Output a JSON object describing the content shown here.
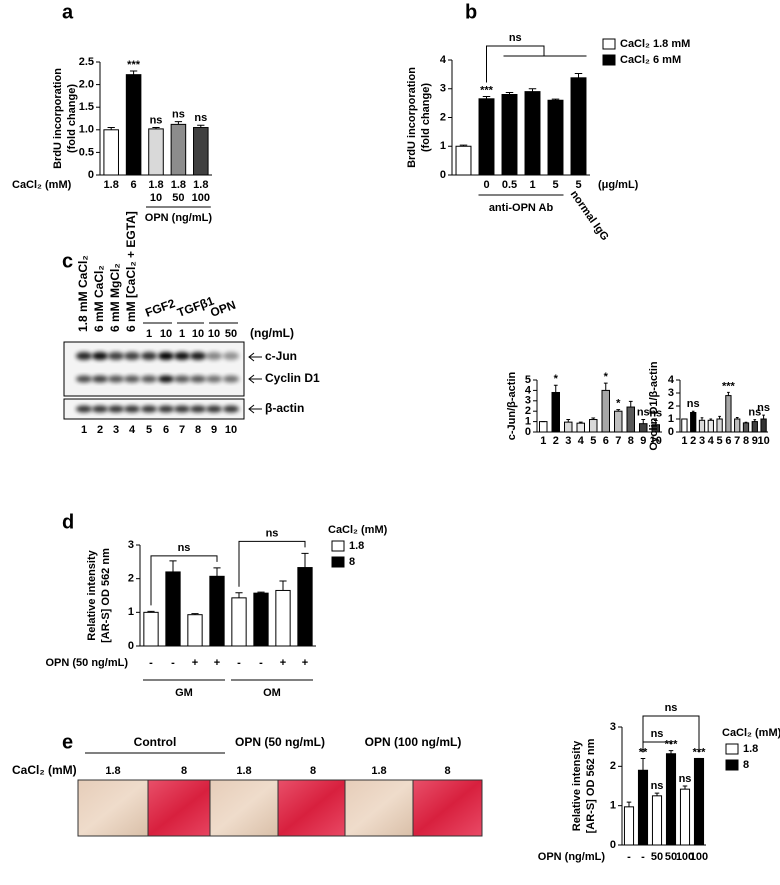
{
  "panel_labels": [
    "a",
    "b",
    "c",
    "d",
    "e"
  ],
  "blot": {
    "lane_conditions": [
      "1.8 mM CaCl₂",
      "6 mM CaCl₂",
      "6 mM MgCl₂",
      "6 mM [CaCl₂ + EGTA]"
    ],
    "treatments": [
      "FGF2",
      "TGFβ1",
      "OPN"
    ],
    "doses": [
      "1",
      "10",
      "1",
      "10",
      "10",
      "50"
    ],
    "dose_unit": "(ng/mL)",
    "bands": [
      "c-Jun",
      "Cyclin D1",
      "β-actin"
    ],
    "lanes": [
      "1",
      "2",
      "3",
      "4",
      "5",
      "6",
      "7",
      "8",
      "9",
      "10"
    ]
  },
  "staining": {
    "groups": [
      "Control",
      "OPN (50 ng/mL)",
      "OPN (100 ng/mL)"
    ],
    "row_label": "CaCl₂ (mM)",
    "levels": [
      "1.8",
      "8",
      "1.8",
      "8",
      "1.8",
      "8"
    ]
  },
  "chart_data": [
    {
      "type": "bar",
      "y_label": [
        "BrdU incorporation",
        "(fold change)"
      ],
      "category_label": "CaCl₂ (mM)",
      "categories": [
        "1.8",
        "6",
        "1.8",
        "1.8",
        "1.8"
      ],
      "opn_doses": [
        null,
        null,
        "10",
        "50",
        "100"
      ],
      "opn_label": "OPN (ng/mL)",
      "values": [
        1.0,
        2.22,
        1.02,
        1.12,
        1.05
      ],
      "errors": [
        0.05,
        0.08,
        0.03,
        0.06,
        0.05
      ],
      "colors": [
        "#ffffff",
        "#000000",
        "#d9d9d9",
        "#8c8c8c",
        "#404040"
      ],
      "annotations": [
        null,
        "***",
        "ns",
        "ns",
        "ns"
      ],
      "ylim": [
        0,
        2.5
      ],
      "yticks": [
        0,
        0.5,
        {
          "value": 1,
          "label": "1.0"
        },
        1.5,
        {
          "value": 2,
          "label": "2.0"
        },
        2.5
      ]
    },
    {
      "type": "bar",
      "y_label": [
        "BrdU incorporation",
        "(fold change)"
      ],
      "categories": [
        null,
        "0",
        "0.5",
        "1",
        "5",
        "5"
      ],
      "x_unit": "(μg/mL)",
      "groups": [
        "anti-OPN Ab",
        "normal IgG"
      ],
      "series": [
        {
          "name": "CaCl₂ 1.8 mM",
          "color": "#ffffff",
          "values": [
            1.0,
            null,
            null,
            null,
            null,
            null
          ],
          "errors": [
            0.04,
            null,
            null,
            null,
            null,
            null
          ]
        },
        {
          "name": "CaCl₂ 6 mM",
          "color": "#000000",
          "values": [
            null,
            2.65,
            2.8,
            2.9,
            2.6,
            3.38
          ],
          "errors": [
            null,
            0.08,
            0.07,
            0.1,
            0.04,
            0.15
          ]
        }
      ],
      "annotations": [
        null,
        "***",
        null,
        null,
        null,
        null
      ],
      "brackets": [
        "ns"
      ],
      "ylim": [
        0,
        4
      ],
      "yticks": [
        0,
        1,
        2,
        3,
        4
      ]
    },
    {
      "type": "bar",
      "y_label": [
        "c-Jun/β-actin"
      ],
      "categories": [
        "1",
        "2",
        "3",
        "4",
        "5",
        "6",
        "7",
        "8",
        "9",
        "10"
      ],
      "values": [
        1.0,
        3.8,
        0.95,
        0.85,
        1.2,
        4.0,
        2.0,
        2.4,
        0.8,
        0.7
      ],
      "errors": [
        0,
        0.7,
        0.25,
        0.1,
        0.15,
        0.7,
        0.15,
        0.55,
        0.4,
        0.4
      ],
      "colors": [
        "#ffffff",
        "#000000",
        "#d9d9d9",
        "#ececec",
        "#d9d9d9",
        "#a6a6a6",
        "#bfbfbf",
        "#595959",
        "#404040",
        "#333333"
      ],
      "annotations": [
        null,
        "*",
        null,
        null,
        null,
        "*",
        "*",
        null,
        "ns",
        "ns"
      ],
      "ylim": [
        0,
        5
      ],
      "yticks": [
        0,
        1,
        2,
        3,
        4,
        5
      ]
    },
    {
      "type": "bar",
      "y_label": [
        "Cyclin D1/β-actin"
      ],
      "categories": [
        "1",
        "2",
        "3",
        "4",
        "5",
        "6",
        "7",
        "8",
        "9",
        "10"
      ],
      "values": [
        1.0,
        1.5,
        0.9,
        0.9,
        1.0,
        2.8,
        1.0,
        0.7,
        0.8,
        1.0
      ],
      "errors": [
        0,
        0.1,
        0.2,
        0.1,
        0.2,
        0.25,
        0.12,
        0.05,
        0.15,
        0.3
      ],
      "colors": [
        "#ffffff",
        "#000000",
        "#d9d9d9",
        "#ececec",
        "#d9d9d9",
        "#a6a6a6",
        "#bfbfbf",
        "#595959",
        "#404040",
        "#333333"
      ],
      "annotations": [
        null,
        "ns",
        null,
        null,
        null,
        "***",
        null,
        null,
        "ns",
        "ns"
      ],
      "ylim": [
        0,
        4
      ],
      "yticks": [
        0,
        1,
        2,
        3,
        4
      ]
    },
    {
      "type": "bar",
      "y_label": [
        "Relative intensity",
        "[AR-S] OD 562 nm"
      ],
      "categories": [
        "-",
        "-",
        "+",
        "+",
        "-",
        "-",
        "+",
        "+"
      ],
      "x_label": "OPN (50 ng/mL)",
      "groups": [
        "GM",
        "OM"
      ],
      "legend_title": "CaCl₂ (mM)",
      "series": [
        {
          "name": "1.8",
          "color": "#ffffff",
          "values": [
            1.0,
            null,
            0.93,
            null,
            1.43,
            null,
            1.65,
            null
          ],
          "errors": [
            0.03,
            null,
            0.03,
            null,
            0.15,
            null,
            0.28,
            null
          ]
        },
        {
          "name": "8",
          "color": "#000000",
          "values": [
            null,
            2.2,
            null,
            2.07,
            null,
            1.57,
            null,
            2.33
          ],
          "errors": [
            null,
            0.33,
            null,
            0.25,
            null,
            0.03,
            null,
            0.42
          ]
        }
      ],
      "brackets": [
        "ns",
        "ns"
      ],
      "ylim": [
        0,
        3
      ],
      "yticks": [
        0,
        1,
        2,
        3
      ]
    },
    {
      "type": "bar",
      "y_label": [
        "Relative intensity",
        "[AR-S] OD 562 nm"
      ],
      "categories": [
        "-",
        "-",
        "50",
        "50",
        "100",
        "100"
      ],
      "x_label": "OPN (ng/mL)",
      "legend_title": "CaCl₂ (mM)",
      "series": [
        {
          "name": "1.8",
          "color": "#ffffff",
          "values": [
            0.97,
            null,
            1.25,
            null,
            1.42,
            null
          ],
          "errors": [
            0.12,
            null,
            0.07,
            null,
            0.08,
            null
          ]
        },
        {
          "name": "8",
          "color": "#000000",
          "values": [
            null,
            1.9,
            null,
            2.32,
            null,
            2.2
          ],
          "errors": [
            null,
            0.3,
            null,
            0.08,
            null,
            0
          ]
        }
      ],
      "annotations": [
        null,
        "**",
        "ns",
        "***",
        "ns",
        "***"
      ],
      "brackets": [
        "ns",
        "ns"
      ],
      "ylim": [
        0,
        3
      ],
      "yticks": [
        0,
        1,
        2,
        3
      ]
    }
  ]
}
